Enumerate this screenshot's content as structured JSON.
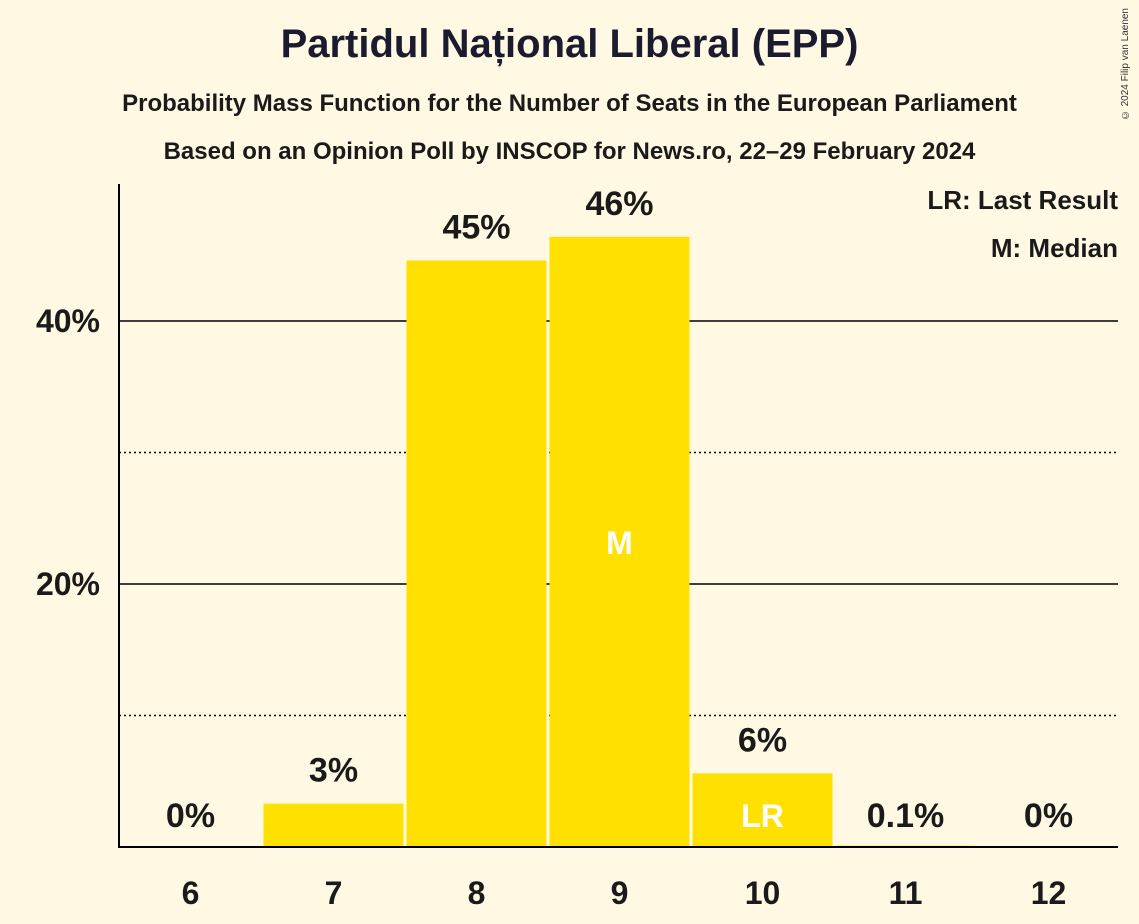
{
  "header": {
    "title": "Partidul Național Liberal (EPP)",
    "subtitle1": "Probability Mass Function for the Number of Seats in the European Parliament",
    "subtitle2": "Based on an Opinion Poll by INSCOP for News.ro, 22–29 February 2024",
    "copyright": "© 2024 Filip van Laenen"
  },
  "legend": {
    "lr": "LR: Last Result",
    "m": "M: Median"
  },
  "colors": {
    "bar": "#ffe000",
    "background": "#fff8e3"
  },
  "chart_data": {
    "type": "bar",
    "categories": [
      "6",
      "7",
      "8",
      "9",
      "10",
      "11",
      "12"
    ],
    "values": [
      0,
      3.3,
      44.6,
      46.4,
      5.6,
      0.1,
      0
    ],
    "value_labels": [
      "0%",
      "3%",
      "45%",
      "46%",
      "6%",
      "0.1%",
      "0%"
    ],
    "markers": {
      "9": "M",
      "10": "LR"
    },
    "ylim": [
      0,
      50
    ],
    "yticks": [
      {
        "value": 20,
        "label": "20%"
      },
      {
        "value": 40,
        "label": "40%"
      }
    ],
    "minor_gridlines": [
      10,
      30
    ],
    "grid": true,
    "legend_position": "top-right"
  }
}
